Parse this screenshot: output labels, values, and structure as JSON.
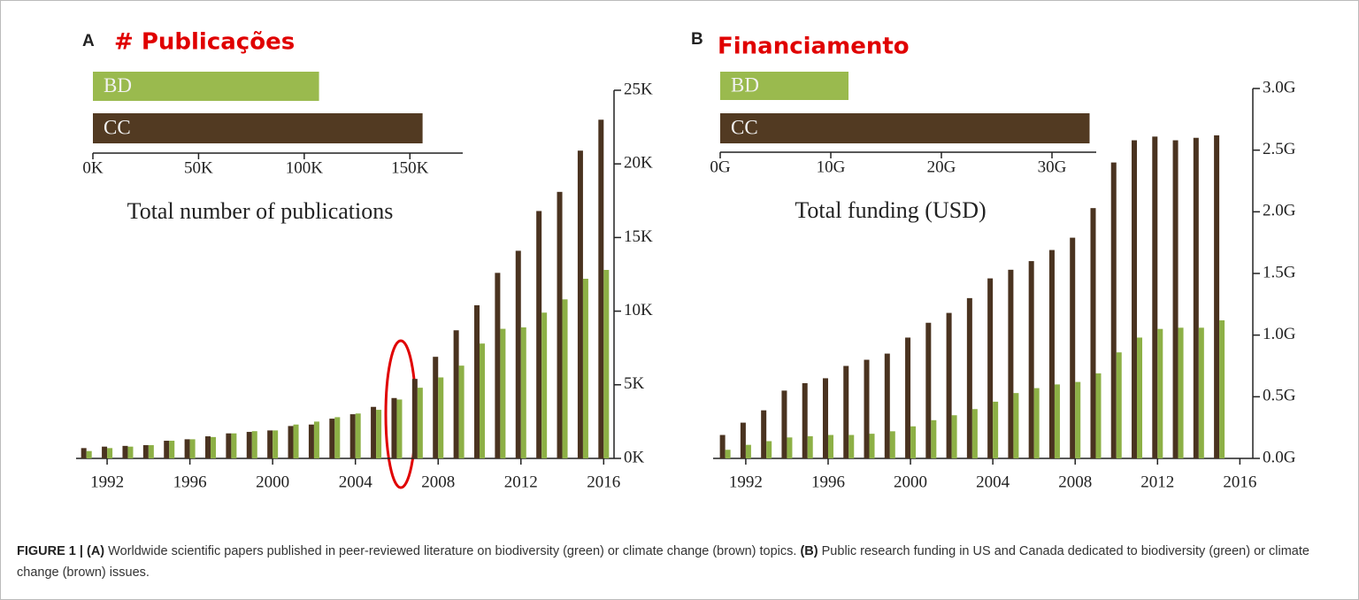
{
  "chart_data": [
    {
      "type": "bar",
      "panel_label": "A",
      "title": "# Publicações",
      "x": [
        1991,
        1992,
        1993,
        1994,
        1995,
        1996,
        1997,
        1998,
        1999,
        2000,
        2001,
        2002,
        2003,
        2004,
        2005,
        2006,
        2007,
        2008,
        2009,
        2010,
        2011,
        2012,
        2013,
        2014,
        2015,
        2016
      ],
      "series": [
        {
          "color": "#4a3320",
          "values": [
            700,
            800,
            850,
            900,
            1200,
            1300,
            1500,
            1700,
            1800,
            1900,
            2200,
            2300,
            2700,
            3000,
            3500,
            4100,
            5400,
            6900,
            8700,
            10400,
            12600,
            14100,
            16800,
            18100,
            20900,
            23000
          ]
        },
        {
          "color": "#8db046",
          "values": [
            500,
            700,
            800,
            900,
            1200,
            1300,
            1450,
            1700,
            1850,
            1900,
            2300,
            2500,
            2800,
            3050,
            3300,
            4000,
            4800,
            5500,
            6300,
            7800,
            8800,
            8900,
            9900,
            10800,
            12200,
            12800
          ]
        }
      ],
      "xlim": [
        1990.5,
        2016.5
      ],
      "xticks": [
        1992,
        1996,
        2000,
        2004,
        2008,
        2012,
        2016
      ],
      "ylim": [
        0,
        25000
      ],
      "yticks": [
        {
          "value": 0,
          "label": "0K"
        },
        {
          "value": 5000,
          "label": "5K"
        },
        {
          "value": 10000,
          "label": "10K"
        },
        {
          "value": 15000,
          "label": "15K"
        },
        {
          "value": 20000,
          "label": "20K"
        },
        {
          "value": 25000,
          "label": "25K"
        }
      ]
    },
    {
      "type": "hbar",
      "xlabel": "Total number of publications",
      "categories": [
        "BD",
        "CC"
      ],
      "values": [
        107000,
        156000
      ],
      "colors": [
        "#9aba4e",
        "#523a22"
      ],
      "xlim": [
        0,
        175000
      ],
      "xticks": [
        {
          "value": 0,
          "label": "0K"
        },
        {
          "value": 50000,
          "label": "50K"
        },
        {
          "value": 100000,
          "label": "100K"
        },
        {
          "value": 150000,
          "label": "150K"
        }
      ]
    },
    {
      "type": "bar",
      "panel_label": "B",
      "title": "Financiamento",
      "x": [
        1991,
        1992,
        1993,
        1994,
        1995,
        1996,
        1997,
        1998,
        1999,
        2000,
        2001,
        2002,
        2003,
        2004,
        2005,
        2006,
        2007,
        2008,
        2009,
        2010,
        2011,
        2012,
        2013,
        2014,
        2015
      ],
      "series": [
        {
          "color": "#4a3320",
          "values": [
            190000000,
            290000000,
            390000000,
            550000000,
            610000000,
            650000000,
            750000000,
            800000000,
            850000000,
            980000000,
            1100000000,
            1180000000,
            1300000000,
            1460000000,
            1530000000,
            1600000000,
            1690000000,
            1790000000,
            2030000000,
            2400000000,
            2580000000,
            2610000000,
            2580000000,
            2600000000,
            2620000000
          ]
        },
        {
          "color": "#8db046",
          "values": [
            70000000,
            110000000,
            140000000,
            170000000,
            180000000,
            190000000,
            190000000,
            200000000,
            220000000,
            260000000,
            310000000,
            350000000,
            400000000,
            460000000,
            530000000,
            570000000,
            600000000,
            620000000,
            690000000,
            860000000,
            980000000,
            1050000000,
            1060000000,
            1060000000,
            1120000000
          ]
        }
      ],
      "xlim": [
        1990.5,
        2016.5
      ],
      "xticks": [
        1992,
        1996,
        2000,
        2004,
        2008,
        2012,
        2016
      ],
      "ylim": [
        0,
        3000000000
      ],
      "yticks": [
        {
          "value": 0,
          "label": "0.0G"
        },
        {
          "value": 500000000,
          "label": "0.5G"
        },
        {
          "value": 1000000000,
          "label": "1.0G"
        },
        {
          "value": 1500000000,
          "label": "1.5G"
        },
        {
          "value": 2000000000,
          "label": "2.0G"
        },
        {
          "value": 2500000000,
          "label": "2.5G"
        },
        {
          "value": 3000000000,
          "label": "3.0G"
        }
      ]
    },
    {
      "type": "hbar",
      "xlabel": "Total funding (USD)",
      "categories": [
        "BD",
        "CC"
      ],
      "values": [
        11600000000,
        33400000000
      ],
      "colors": [
        "#9aba4e",
        "#523a22"
      ],
      "xlim": [
        0,
        34000000000
      ],
      "xticks": [
        {
          "value": 0,
          "label": "0G"
        },
        {
          "value": 10000000000,
          "label": "10G"
        },
        {
          "value": 20000000000,
          "label": "20G"
        },
        {
          "value": 30000000000,
          "label": "30G"
        }
      ]
    }
  ],
  "caption": {
    "figure": "FIGURE 1 |",
    "a_label": "(A)",
    "a_text": "Worldwide scientific papers published in peer-reviewed literature on biodiversity (green) or climate change (brown) topics.",
    "b_label": "(B)",
    "b_text": "Public research funding in US and Canada dedicated to biodiversity (green) or climate change (brown) issues."
  }
}
